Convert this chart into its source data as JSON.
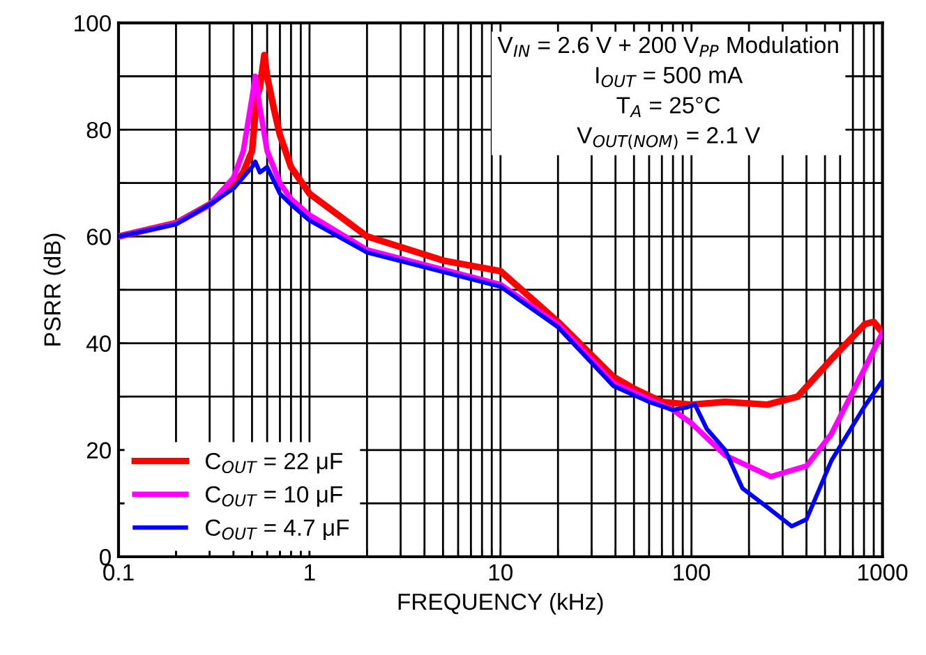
{
  "chart_data": {
    "type": "line",
    "xlabel": "FREQUENCY (kHz)",
    "ylabel": "PSRR (dB)",
    "log": "x",
    "grid": true,
    "legend": "bottom left",
    "marker": "none",
    "line_style": "solid",
    "xlim": [
      0.1,
      1000
    ],
    "ylim": [
      0,
      100
    ],
    "xticks": [
      0.1,
      {
        "value": 0.2,
        "label": null
      },
      {
        "value": 0.3,
        "label": null
      },
      {
        "value": 0.4,
        "label": null
      },
      {
        "value": 0.5,
        "label": null
      },
      {
        "value": 0.6,
        "label": null
      },
      {
        "value": 0.7,
        "label": null
      },
      {
        "value": 0.8,
        "label": null
      },
      {
        "value": 0.9,
        "label": null
      },
      1,
      {
        "value": 2,
        "label": null
      },
      {
        "value": 3,
        "label": null
      },
      {
        "value": 4,
        "label": null
      },
      {
        "value": 5,
        "label": null
      },
      {
        "value": 6,
        "label": null
      },
      {
        "value": 7,
        "label": null
      },
      {
        "value": 8,
        "label": null
      },
      {
        "value": 9,
        "label": null
      },
      10,
      {
        "value": 20,
        "label": null
      },
      {
        "value": 30,
        "label": null
      },
      {
        "value": 40,
        "label": null
      },
      {
        "value": 50,
        "label": null
      },
      {
        "value": 60,
        "label": null
      },
      {
        "value": 70,
        "label": null
      },
      {
        "value": 80,
        "label": null
      },
      {
        "value": 90,
        "label": null
      },
      100,
      {
        "value": 200,
        "label": null
      },
      {
        "value": 300,
        "label": null
      },
      {
        "value": 400,
        "label": null
      },
      {
        "value": 500,
        "label": null
      },
      {
        "value": 600,
        "label": null
      },
      {
        "value": 700,
        "label": null
      },
      {
        "value": 800,
        "label": null
      },
      {
        "value": 900,
        "label": null
      },
      1000
    ],
    "yticks": [
      0,
      {
        "value": 10,
        "label": null
      },
      20,
      {
        "value": 30,
        "label": null
      },
      40,
      {
        "value": 50,
        "label": null
      },
      60,
      {
        "value": 70,
        "label": null
      },
      80,
      {
        "value": 90,
        "label": null
      },
      100
    ],
    "annotations": [
      "V$_{IN}$ = 2.6 V + 200 V$_{PP}$ Modulation",
      "I$_{OUT}$ = 500 mA",
      "T$_{A}$ = 25°C",
      "V$_{OUT(NOM)}$ = 2.1 V"
    ],
    "series": [
      {
        "name": "C$_{OUT}$ = 22 μF",
        "color": "#ff0000",
        "x": [
          0.1,
          0.2,
          0.3,
          0.4,
          0.45,
          0.5,
          0.53,
          0.55,
          0.58,
          0.6,
          0.65,
          0.7,
          0.8,
          1,
          2,
          5,
          10,
          20,
          39,
          50,
          70,
          100,
          150,
          250,
          360,
          540,
          810,
          900,
          1000
        ],
        "values": [
          60,
          62.5,
          66,
          69.5,
          72,
          76,
          86,
          88,
          94,
          90,
          84,
          79,
          73,
          68,
          60,
          55.5,
          53.5,
          44,
          33.7,
          31.5,
          29,
          28.5,
          29,
          28.5,
          30,
          37,
          43.6,
          44,
          42
        ]
      },
      {
        "name": "C$_{OUT}$ = 10 μF",
        "color": "#ff00ff",
        "x": [
          0.1,
          0.2,
          0.3,
          0.4,
          0.45,
          0.5,
          0.52,
          0.55,
          0.6,
          0.7,
          0.8,
          1,
          2,
          10,
          20,
          39,
          60,
          80,
          100,
          150,
          260,
          400,
          540,
          800,
          1000
        ],
        "values": [
          60,
          62.5,
          66,
          71,
          76,
          86,
          90,
          84,
          76,
          70,
          67,
          64,
          57.5,
          51,
          43.5,
          32.5,
          29.5,
          27.5,
          25,
          19,
          15,
          17,
          23,
          35,
          42
        ]
      },
      {
        "name": "C$_{OUT}$ = 4.7 μF",
        "color": "#0000ff",
        "x": [
          0.1,
          0.2,
          0.3,
          0.4,
          0.5,
          0.52,
          0.55,
          0.6,
          0.7,
          0.8,
          1,
          2,
          10,
          20,
          39,
          60,
          80,
          95,
          104,
          120,
          150,
          185,
          247,
          335,
          400,
          540,
          800,
          1000
        ],
        "values": [
          60,
          62.3,
          66,
          69,
          73,
          74,
          72,
          73,
          68,
          66,
          63,
          57,
          50.6,
          43,
          32,
          29,
          27.5,
          28,
          28.6,
          24,
          20,
          12.8,
          9.4,
          5.7,
          7,
          18,
          28,
          33
        ]
      }
    ]
  }
}
